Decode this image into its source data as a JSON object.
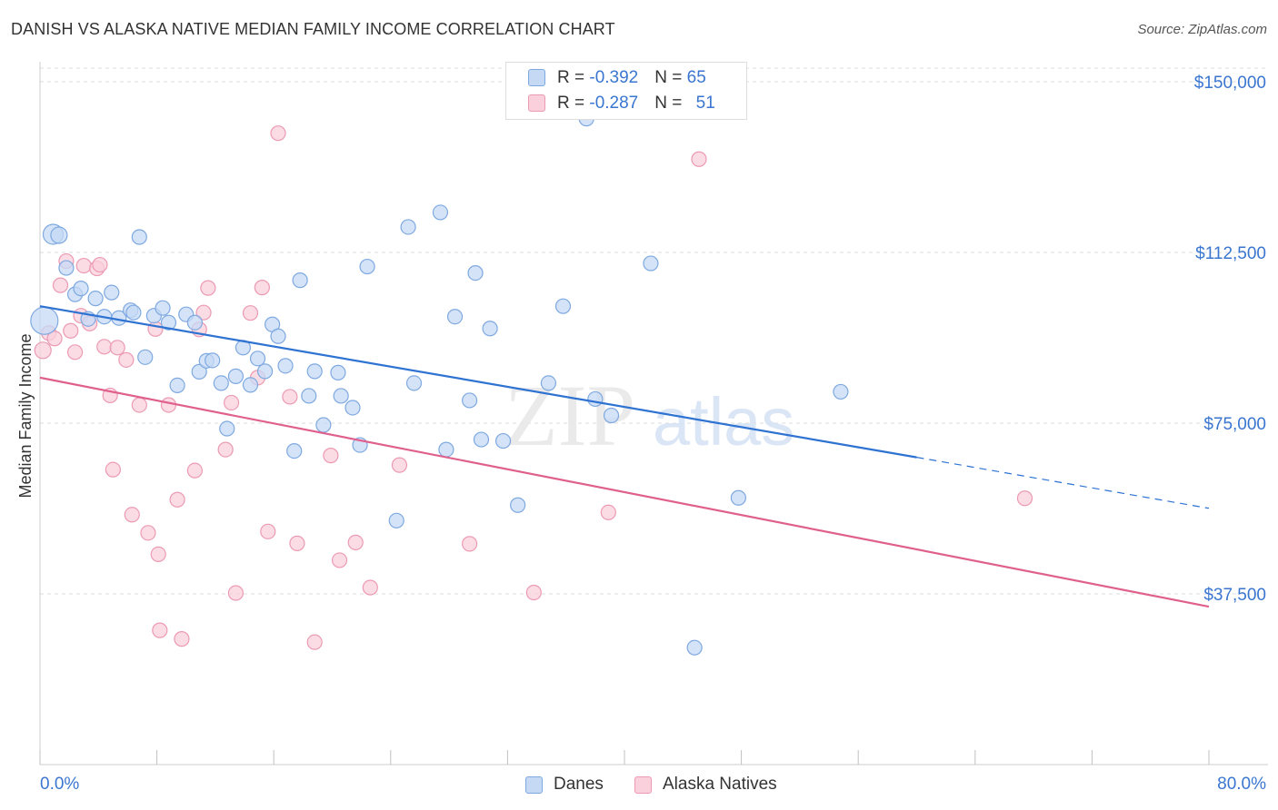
{
  "header": {
    "title": "DANISH VS ALASKA NATIVE MEDIAN FAMILY INCOME CORRELATION CHART",
    "source": "Source: ZipAtlas.com"
  },
  "watermark": {
    "zip": "ZIP",
    "atlas": "atlas"
  },
  "stats": {
    "danes": {
      "r_label": "R = ",
      "r_value": "-0.392",
      "n_label": "N = ",
      "n_value": "65"
    },
    "alaska": {
      "r_label": "R = ",
      "r_value": "-0.287",
      "n_label": "N = ",
      "n_value": "51"
    }
  },
  "legend": {
    "danes": "Danes",
    "alaska": "Alaska Natives"
  },
  "colors": {
    "danes_fill": "#c5d9f5",
    "danes_stroke": "#7ea9e0",
    "danes_line": "#2e72d2",
    "alaska_fill": "#f9d0dc",
    "alaska_stroke": "#ec9ab3",
    "alaska_line": "#e0608d",
    "axis_label": "#3a76d0",
    "grid": "#dddddd"
  },
  "chart_data": {
    "type": "scatter",
    "title": "DANISH VS ALASKA NATIVE MEDIAN FAMILY INCOME CORRELATION CHART",
    "xlabel": "",
    "ylabel": "Median Family Income",
    "x_tick_labels": [
      "0.0%",
      "80.0%"
    ],
    "y_tick_labels": [
      "$150,000",
      "$112,500",
      "$75,000",
      "$37,500"
    ],
    "y_ticks": [
      150000,
      112500,
      75000,
      37500
    ],
    "xlim": [
      0,
      80
    ],
    "ylim": [
      0,
      153000
    ],
    "grid": true,
    "legend_position": "bottom-center",
    "series": [
      {
        "name": "Danes",
        "r": -0.392,
        "n": 65,
        "trend": {
          "x_start": 0,
          "y_start": 100700,
          "x_solid_end": 60,
          "y_solid_end": 67500,
          "x_end": 80,
          "y_end": 56300
        },
        "points": [
          [
            0.3,
            97.5,
            28
          ],
          [
            0.9,
            116.5,
            20
          ],
          [
            1.3,
            116.3,
            16
          ],
          [
            1.8,
            109.1,
            14
          ],
          [
            2.4,
            103.3,
            14
          ],
          [
            2.8,
            104.6,
            14
          ],
          [
            3.3,
            97.9,
            14
          ],
          [
            3.8,
            102.4,
            14
          ],
          [
            4.4,
            98.4,
            14
          ],
          [
            4.9,
            103.7,
            14
          ],
          [
            5.4,
            98.1,
            14
          ],
          [
            6.2,
            99.8,
            14
          ],
          [
            6.4,
            99.3,
            14
          ],
          [
            6.8,
            115.9,
            14
          ],
          [
            7.2,
            89.5,
            14
          ],
          [
            7.8,
            98.6,
            14
          ],
          [
            8.4,
            100.3,
            14
          ],
          [
            8.8,
            97.1,
            14
          ],
          [
            9.4,
            83.3,
            14
          ],
          [
            10.0,
            98.9,
            14
          ],
          [
            10.6,
            97.1,
            14
          ],
          [
            10.9,
            86.3,
            14
          ],
          [
            11.4,
            88.7,
            14
          ],
          [
            11.8,
            88.8,
            14
          ],
          [
            12.4,
            83.8,
            14
          ],
          [
            12.8,
            73.8,
            14
          ],
          [
            13.4,
            85.3,
            14
          ],
          [
            13.9,
            91.6,
            14
          ],
          [
            14.4,
            83.4,
            14
          ],
          [
            14.9,
            89.2,
            14
          ],
          [
            15.4,
            86.4,
            14
          ],
          [
            15.9,
            96.7,
            14
          ],
          [
            16.3,
            94.1,
            14
          ],
          [
            16.8,
            87.6,
            14
          ],
          [
            17.4,
            68.9,
            14
          ],
          [
            17.8,
            106.4,
            14
          ],
          [
            18.4,
            81.0,
            14
          ],
          [
            18.8,
            86.4,
            14
          ],
          [
            19.4,
            74.6,
            14
          ],
          [
            20.4,
            86.1,
            14
          ],
          [
            20.6,
            81.0,
            14
          ],
          [
            21.4,
            78.4,
            14
          ],
          [
            21.9,
            70.2,
            14
          ],
          [
            22.4,
            109.4,
            14
          ],
          [
            24.4,
            53.6,
            14
          ],
          [
            25.2,
            118.1,
            14
          ],
          [
            25.6,
            83.8,
            14
          ],
          [
            27.4,
            121.3,
            14
          ],
          [
            27.8,
            69.2,
            14
          ],
          [
            28.4,
            98.4,
            14
          ],
          [
            29.4,
            80.0,
            14
          ],
          [
            29.8,
            108.0,
            14
          ],
          [
            30.2,
            71.4,
            14
          ],
          [
            30.8,
            95.8,
            14
          ],
          [
            31.7,
            71.1,
            14
          ],
          [
            32.7,
            57.0,
            14
          ],
          [
            34.8,
            83.8,
            14
          ],
          [
            35.8,
            100.7,
            14
          ],
          [
            37.4,
            141.9,
            14
          ],
          [
            38.0,
            80.3,
            14
          ],
          [
            39.1,
            76.7,
            14
          ],
          [
            41.8,
            110.1,
            14
          ],
          [
            44.8,
            25.7,
            14
          ],
          [
            47.8,
            58.6,
            14
          ],
          [
            54.8,
            81.9,
            14
          ]
        ]
      },
      {
        "name": "Alaska Natives",
        "r": -0.287,
        "n": 51,
        "trend": {
          "x_start": 0,
          "y_start": 85000,
          "x_end": 80,
          "y_end": 34700
        },
        "points": [
          [
            0.2,
            91.0,
            16
          ],
          [
            0.6,
            94.8,
            14
          ],
          [
            1.0,
            93.6,
            14
          ],
          [
            1.4,
            105.3,
            14
          ],
          [
            1.8,
            110.6,
            14
          ],
          [
            2.1,
            95.3,
            14
          ],
          [
            2.4,
            90.6,
            14
          ],
          [
            2.8,
            98.6,
            14
          ],
          [
            3.0,
            109.6,
            14
          ],
          [
            3.4,
            96.9,
            14
          ],
          [
            3.9,
            109.0,
            14
          ],
          [
            4.1,
            109.8,
            14
          ],
          [
            4.4,
            91.8,
            14
          ],
          [
            4.8,
            81.1,
            14
          ],
          [
            5.0,
            64.8,
            14
          ],
          [
            5.3,
            91.6,
            14
          ],
          [
            5.9,
            88.9,
            14
          ],
          [
            6.3,
            54.9,
            14
          ],
          [
            6.8,
            79.0,
            14
          ],
          [
            7.4,
            50.9,
            14
          ],
          [
            7.9,
            95.7,
            14
          ],
          [
            8.1,
            46.2,
            14
          ],
          [
            8.2,
            29.5,
            14
          ],
          [
            8.8,
            79.0,
            14
          ],
          [
            9.4,
            58.2,
            14
          ],
          [
            9.7,
            27.6,
            14
          ],
          [
            10.6,
            64.6,
            14
          ],
          [
            10.9,
            95.6,
            14
          ],
          [
            11.2,
            99.3,
            14
          ],
          [
            11.5,
            104.7,
            14
          ],
          [
            12.7,
            69.2,
            14
          ],
          [
            13.1,
            79.5,
            14
          ],
          [
            13.4,
            37.7,
            14
          ],
          [
            14.4,
            99.2,
            14
          ],
          [
            14.9,
            85.0,
            14
          ],
          [
            15.2,
            104.8,
            14
          ],
          [
            15.6,
            51.2,
            14
          ],
          [
            16.3,
            138.7,
            14
          ],
          [
            17.1,
            80.8,
            14
          ],
          [
            17.6,
            48.6,
            14
          ],
          [
            18.8,
            26.9,
            14
          ],
          [
            19.9,
            67.9,
            14
          ],
          [
            20.5,
            44.9,
            14
          ],
          [
            21.6,
            48.8,
            14
          ],
          [
            22.6,
            38.9,
            14
          ],
          [
            24.6,
            65.8,
            14
          ],
          [
            29.4,
            48.5,
            14
          ],
          [
            33.8,
            37.8,
            14
          ],
          [
            38.9,
            55.4,
            14
          ],
          [
            45.1,
            133.0,
            14
          ],
          [
            67.4,
            58.5,
            14
          ]
        ]
      }
    ]
  }
}
